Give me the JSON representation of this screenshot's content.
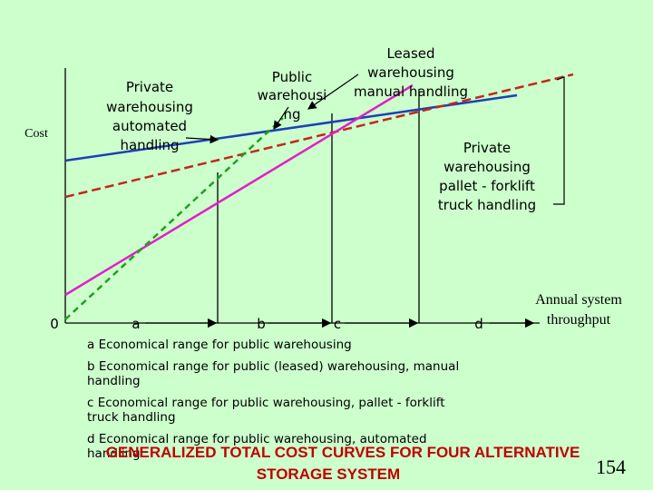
{
  "axes": {
    "y_label": "Cost",
    "x_label": [
      "Annual system",
      "throughput"
    ],
    "origin": "0"
  },
  "points": [
    "a",
    "b",
    "c",
    "d"
  ],
  "curves": [
    {
      "label": [
        "Private",
        "warehousing",
        "automated",
        "handling"
      ]
    },
    {
      "label": [
        "Public",
        "warehousi",
        "ng"
      ]
    },
    {
      "label": [
        "Leased",
        "warehousing",
        "manual handling"
      ]
    },
    {
      "label": [
        "Private",
        "warehousing",
        "pallet - forklift",
        "truck handling"
      ]
    }
  ],
  "ranges": [
    [
      "a  Economical range for public warehousing"
    ],
    [
      "b  Economical range for public (leased) warehousing, manual",
      "handling"
    ],
    [
      "c  Economical range for public warehousing, pallet - forklift",
      "truck handling"
    ],
    [
      "d  Economical range for public warehousing, automated",
      "handling"
    ]
  ],
  "title": [
    "GENERALIZED TOTAL COST CURVES FOR FOUR ALTERNATIVE",
    "STORAGE SYSTEM"
  ],
  "page_number": "154"
}
